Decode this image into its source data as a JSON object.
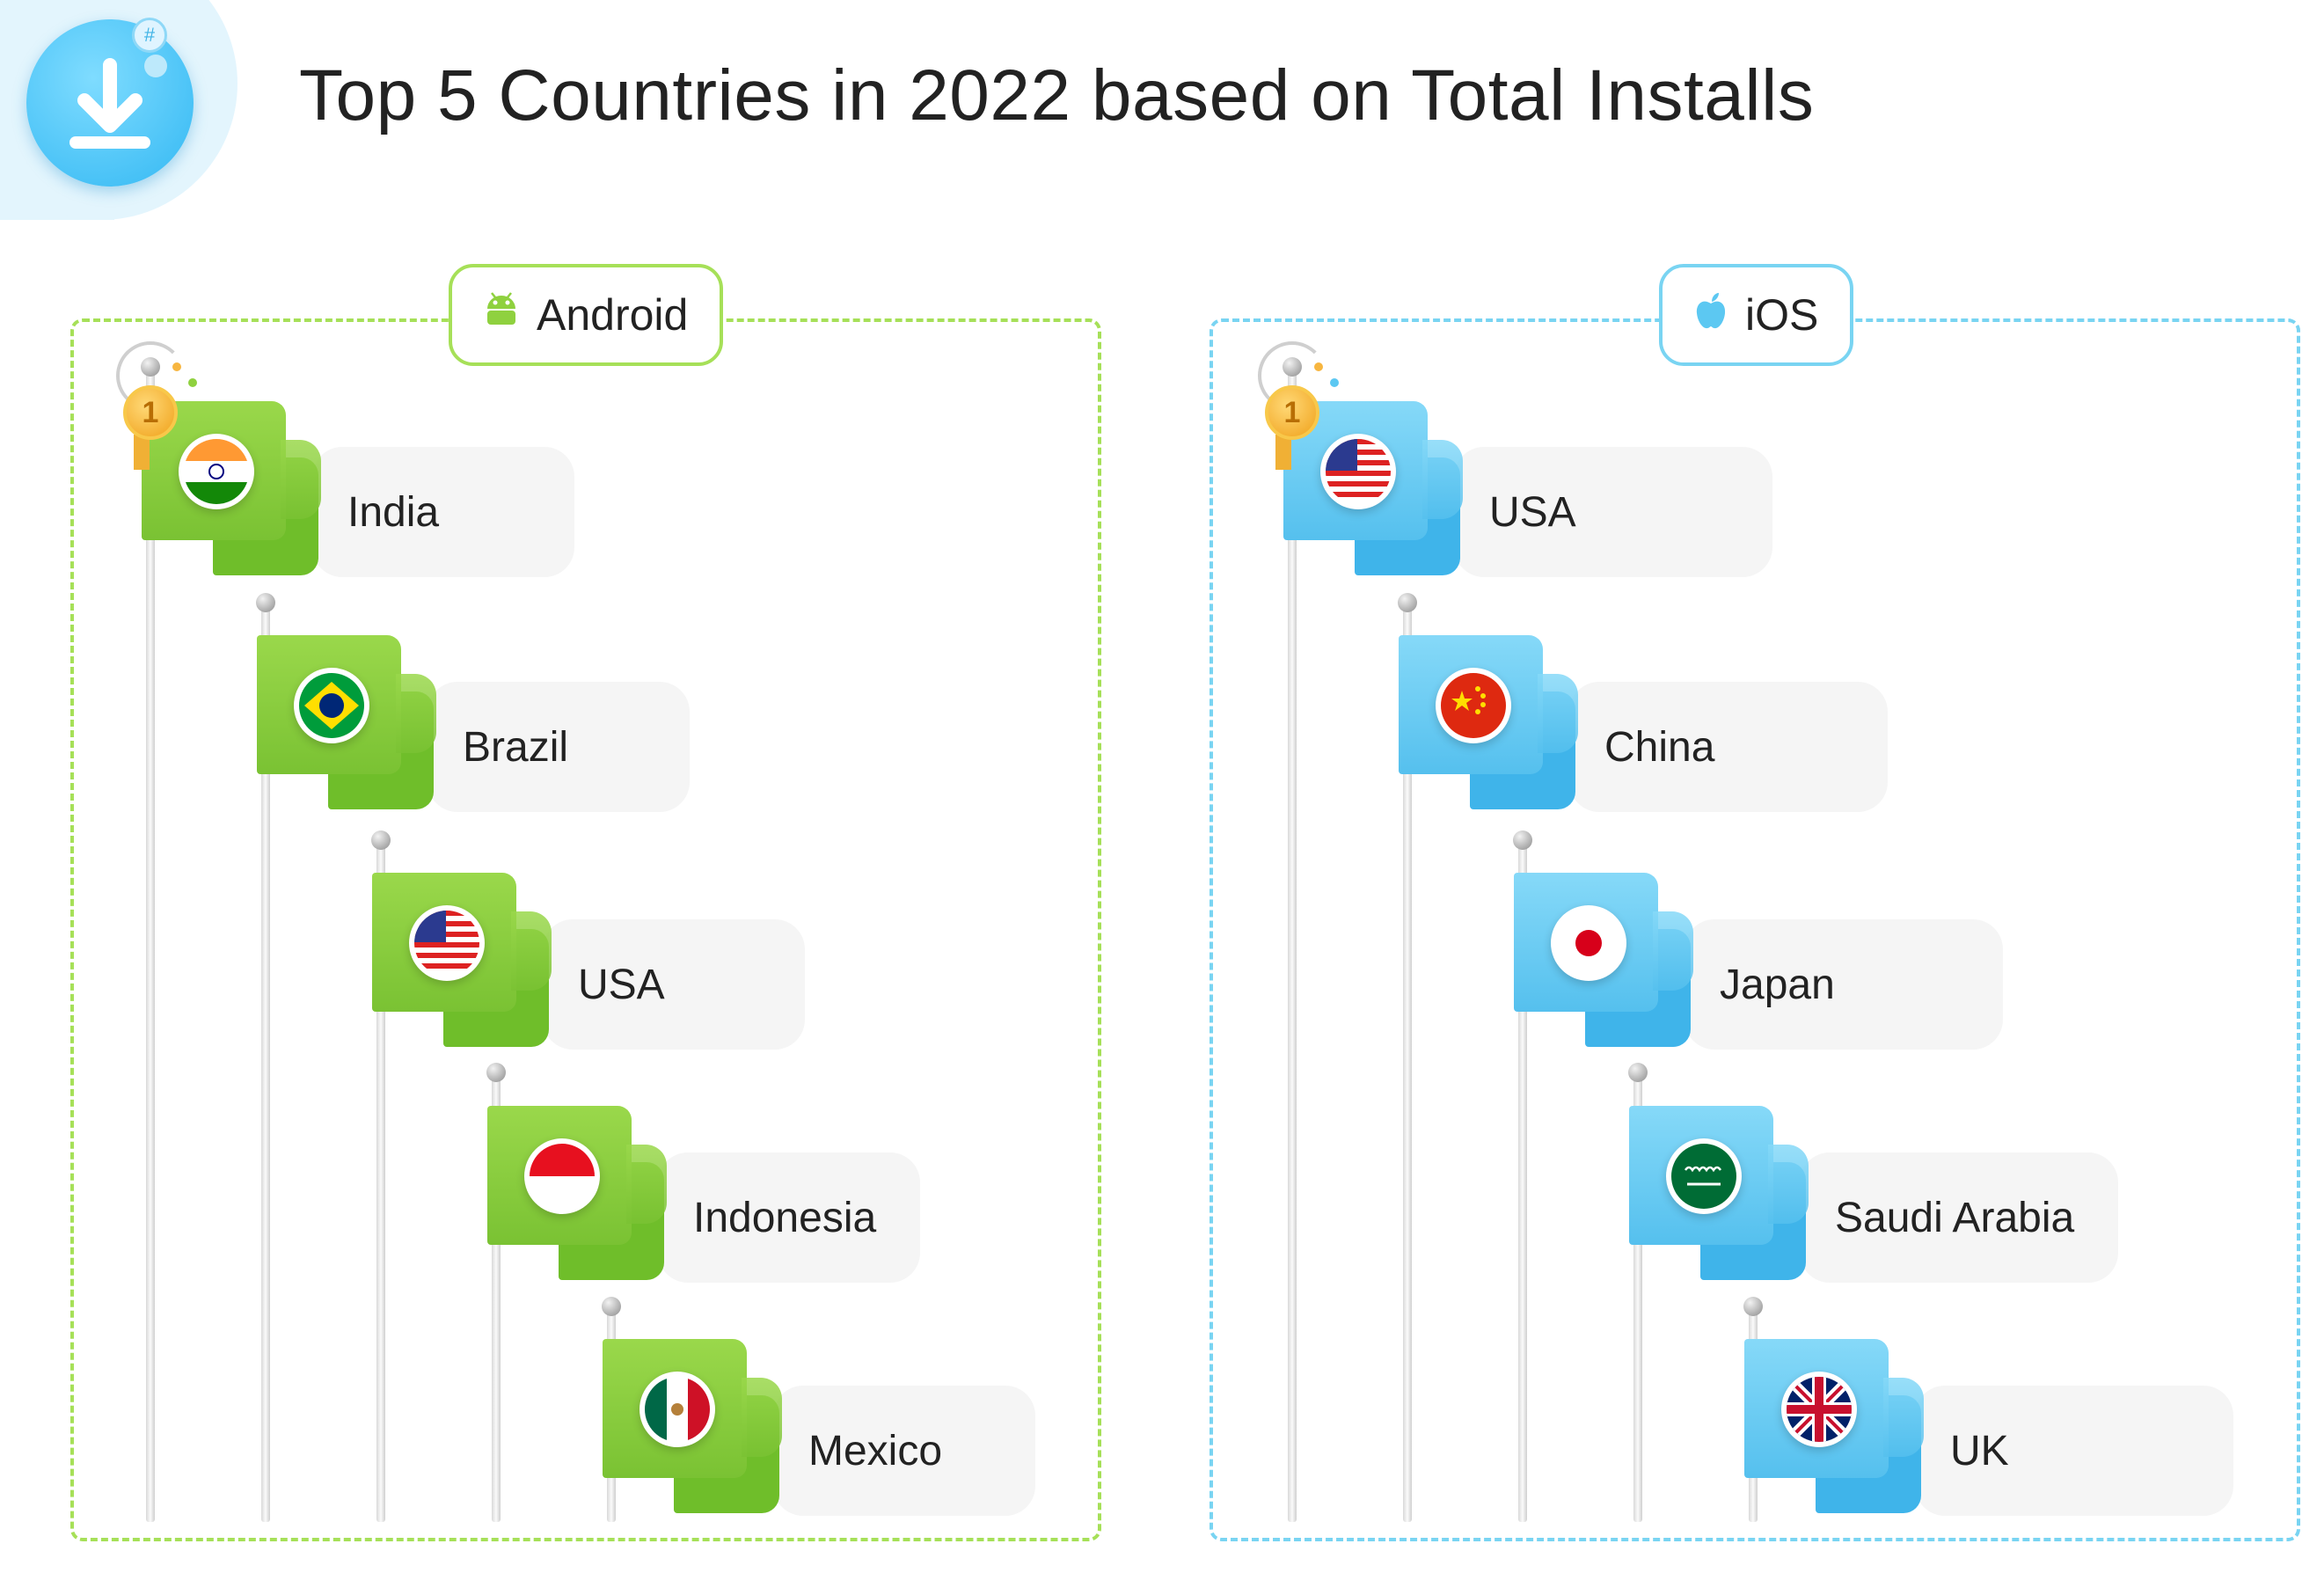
{
  "title": "Top 5 Countries in 2022 based on Total Installs",
  "header_icon": "download-icon",
  "colors": {
    "android_accent": "#8fd13f",
    "ios_accent": "#5cc8f2",
    "card": "#f5f5f5"
  },
  "android": {
    "label": "Android",
    "icon": "android-icon",
    "rank_badge": "1",
    "countries": [
      {
        "name": "India",
        "flag": "india-flag-icon"
      },
      {
        "name": "Brazil",
        "flag": "brazil-flag-icon"
      },
      {
        "name": "USA",
        "flag": "usa-flag-icon"
      },
      {
        "name": "Indonesia",
        "flag": "indonesia-flag-icon"
      },
      {
        "name": "Mexico",
        "flag": "mexico-flag-icon"
      }
    ]
  },
  "ios": {
    "label": "iOS",
    "icon": "apple-icon",
    "rank_badge": "1",
    "countries": [
      {
        "name": "USA",
        "flag": "usa-flag-icon"
      },
      {
        "name": "China",
        "flag": "china-flag-icon"
      },
      {
        "name": "Japan",
        "flag": "japan-flag-icon"
      },
      {
        "name": "Saudi Arabia",
        "flag": "saudi-arabia-flag-icon"
      },
      {
        "name": "UK",
        "flag": "uk-flag-icon"
      }
    ]
  }
}
